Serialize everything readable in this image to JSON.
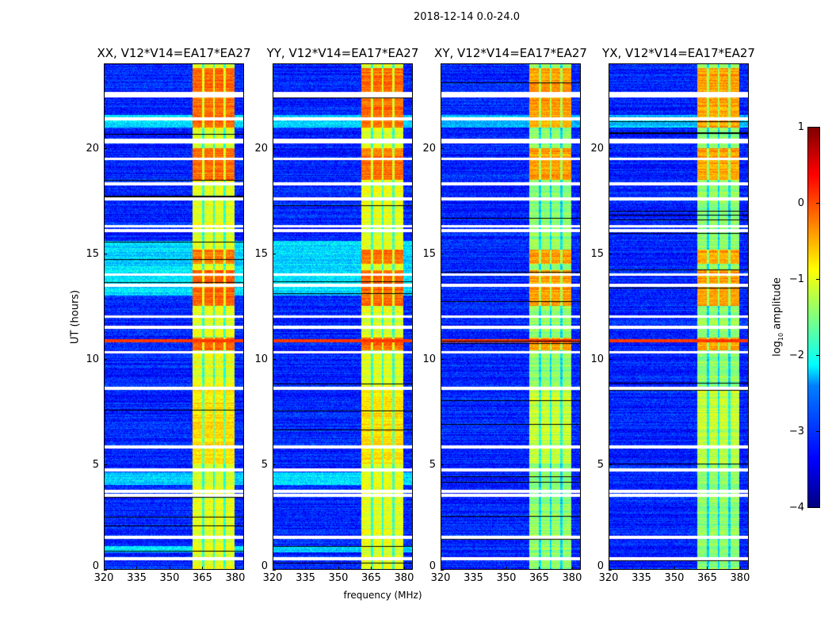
{
  "chart_data": {
    "type": "heatmap",
    "title": "2018-12-14 0.0-24.0",
    "xlabel": "frequency (MHz)",
    "ylabel": "UT (hours)",
    "xlim": [
      320,
      384
    ],
    "ylim": [
      0,
      24
    ],
    "xticks": [
      320,
      335,
      350,
      365,
      380
    ],
    "yticks": [
      0,
      5,
      10,
      15,
      20
    ],
    "panels": [
      {
        "title": "XX, V12*V14=EA17*EA27",
        "cross_pol": false
      },
      {
        "title": "YY, V12*V14=EA17*EA27",
        "cross_pol": false
      },
      {
        "title": "XY, V12*V14=EA17*EA27",
        "cross_pol": true
      },
      {
        "title": "YX, V12*V14=EA17*EA27",
        "cross_pol": true
      }
    ],
    "colorbar": {
      "label_prefix": "log",
      "label_sub": "10",
      "label_suffix": " amplitude",
      "range": [
        -4,
        1
      ],
      "ticks": [
        "−4",
        "−3",
        "−2",
        "−1",
        "0",
        "1"
      ],
      "colormap": "jet"
    },
    "background_log_amplitude": -3.2,
    "rfi_band_mhz": [
      360.5,
      380
    ],
    "rfi_log_amplitude": -1.0,
    "rfi_gap_channels_mhz": [
      365.5,
      370.5,
      375.5
    ],
    "hot_hours": [
      [
        10.4,
        11.0
      ],
      [
        12.5,
        14.2
      ],
      [
        14.5,
        15.2
      ],
      [
        18.5,
        20.0
      ],
      [
        21.0,
        23.8
      ]
    ],
    "flagged_hours": [
      0.5,
      1.5,
      3.5,
      3.7,
      4.7,
      5.8,
      8.6,
      10.3,
      11.5,
      12.0,
      13.5,
      14.0,
      16.1,
      16.3,
      17.6,
      18.3,
      19.5,
      20.3,
      20.4,
      21.4,
      22.5,
      22.6
    ]
  }
}
